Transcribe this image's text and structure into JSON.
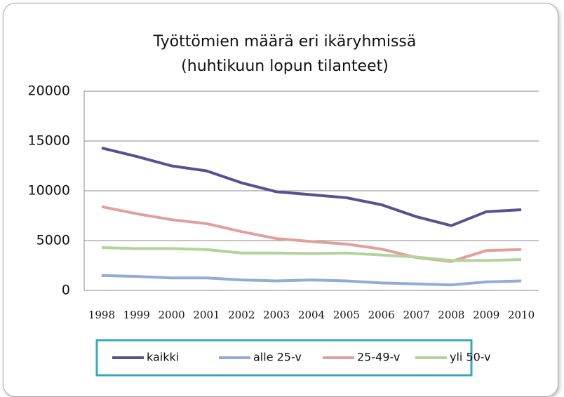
{
  "chart_data": {
    "type": "line",
    "title": "Työttömien määrä eri ikäryhmissä",
    "subtitle": "(huhtikuun lopun tilanteet)",
    "categories": [
      "1998",
      "1999",
      "2000",
      "2001",
      "2002",
      "2003",
      "2004",
      "2005",
      "2006",
      "2007",
      "2008",
      "2009",
      "2010"
    ],
    "series": [
      {
        "name": "kaikki",
        "color": "#5c4f8f",
        "values": [
          14300,
          13450,
          12500,
          12000,
          10800,
          9900,
          9600,
          9300,
          8600,
          7400,
          6500,
          7900,
          8100
        ]
      },
      {
        "name": "alle 25-v",
        "color": "#94acd4",
        "values": [
          1500,
          1400,
          1250,
          1250,
          1050,
          950,
          1050,
          950,
          750,
          650,
          550,
          850,
          950
        ]
      },
      {
        "name": "25-49-v",
        "color": "#e0a09d",
        "values": [
          8400,
          7700,
          7100,
          6700,
          5900,
          5200,
          4900,
          4650,
          4150,
          3300,
          2900,
          4000,
          4100
        ]
      },
      {
        "name": "yli 50-v",
        "color": "#b1d49a",
        "values": [
          4300,
          4200,
          4200,
          4100,
          3750,
          3750,
          3700,
          3750,
          3550,
          3350,
          3000,
          3000,
          3100
        ]
      }
    ],
    "ylim": [
      0,
      20000
    ],
    "yticks": [
      0,
      5000,
      10000,
      15000,
      20000
    ],
    "grid": true,
    "legend": "bottom"
  }
}
